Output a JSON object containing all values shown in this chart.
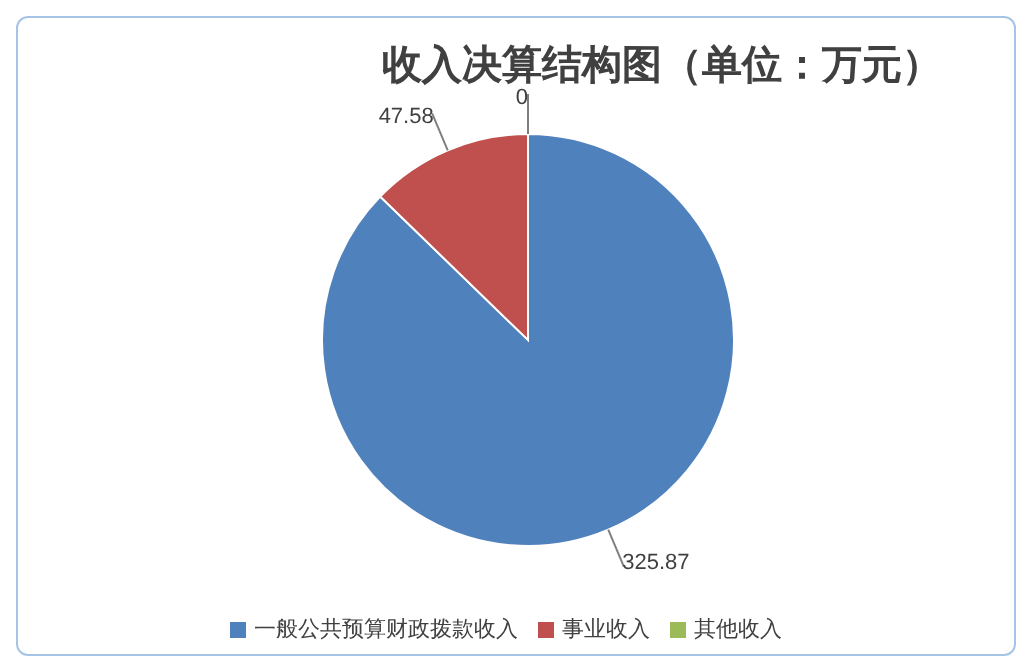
{
  "chart_data": {
    "type": "pie",
    "title": "收入决算结构图（单位：万元）",
    "categories": [
      "一般公共预算财政拨款收入",
      "事业收入",
      "其他收入"
    ],
    "values": [
      325.87,
      47.58,
      0
    ],
    "colors": [
      "#4f81bd",
      "#c0504d",
      "#9bbb59"
    ],
    "value_labels": [
      "325.87",
      "47.58",
      "0"
    ],
    "legend": "bottom"
  }
}
